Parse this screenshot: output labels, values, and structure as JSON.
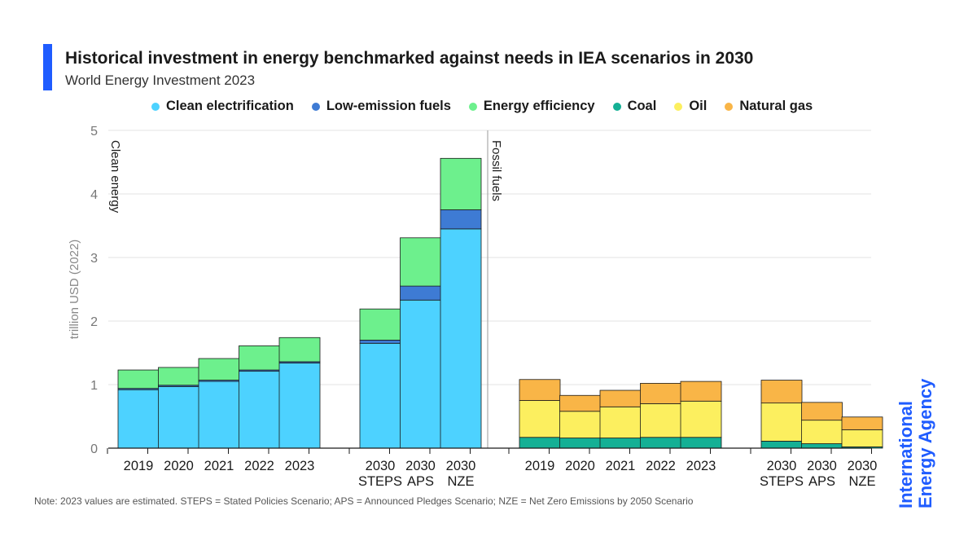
{
  "header": {
    "title": "Historical investment in energy benchmarked against needs in IEA scenarios in 2030",
    "subtitle": "World Energy Investment 2023"
  },
  "chart_data": {
    "type": "bar",
    "stacked": true,
    "ylabel": "trillion USD (2022)",
    "ylim": [
      0,
      5
    ],
    "yticks": [
      0,
      1,
      2,
      3,
      4,
      5
    ],
    "grid": true,
    "legend_position": "top",
    "panels": [
      {
        "label": "Clean energy",
        "categories": [
          [
            "2019"
          ],
          [
            "2020"
          ],
          [
            "2021"
          ],
          [
            "2022"
          ],
          [
            "2023"
          ],
          [
            "2030",
            "STEPS"
          ],
          [
            "2030",
            "APS"
          ],
          [
            "2030",
            "NZE"
          ]
        ],
        "series": [
          {
            "name": "Clean electrification",
            "color": "#4dd2ff",
            "values": [
              0.92,
              0.97,
              1.05,
              1.21,
              1.34,
              1.65,
              2.33,
              3.45
            ]
          },
          {
            "name": "Low-emission fuels",
            "color": "#3e7bd4",
            "values": [
              0.02,
              0.02,
              0.02,
              0.02,
              0.02,
              0.05,
              0.22,
              0.3
            ]
          },
          {
            "name": "Energy efficiency",
            "color": "#6df08d",
            "values": [
              0.29,
              0.28,
              0.34,
              0.38,
              0.38,
              0.49,
              0.76,
              0.81
            ]
          }
        ]
      },
      {
        "label": "Fossil fuels",
        "categories": [
          [
            "2019"
          ],
          [
            "2020"
          ],
          [
            "2021"
          ],
          [
            "2022"
          ],
          [
            "2023"
          ],
          [
            "2030",
            "STEPS"
          ],
          [
            "2030",
            "APS"
          ],
          [
            "2030",
            "NZE"
          ]
        ],
        "series": [
          {
            "name": "Coal",
            "color": "#14b095",
            "values": [
              0.17,
              0.16,
              0.16,
              0.17,
              0.17,
              0.11,
              0.07,
              0.02
            ]
          },
          {
            "name": "Oil",
            "color": "#fcef5f",
            "values": [
              0.58,
              0.42,
              0.49,
              0.53,
              0.57,
              0.6,
              0.37,
              0.27
            ]
          },
          {
            "name": "Natural gas",
            "color": "#f9b547",
            "values": [
              0.33,
              0.25,
              0.26,
              0.32,
              0.31,
              0.36,
              0.28,
              0.2
            ]
          }
        ]
      }
    ]
  },
  "legend": {
    "items": [
      {
        "label": "Clean electrification",
        "color": "#4dd2ff"
      },
      {
        "label": "Low-emission fuels",
        "color": "#3e7bd4"
      },
      {
        "label": "Energy efficiency",
        "color": "#6df08d"
      },
      {
        "label": "Coal",
        "color": "#14b095"
      },
      {
        "label": "Oil",
        "color": "#fcef5f"
      },
      {
        "label": "Natural gas",
        "color": "#f9b547"
      }
    ]
  },
  "note": "Note: 2023 values are estimated. STEPS = Stated Policies Scenario; APS = Announced Pledges Scenario; NZE = Net Zero Emissions by 2050 Scenario",
  "logo": {
    "line1": "International",
    "line2": "Energy Agency",
    "color": "#1f5cff"
  }
}
